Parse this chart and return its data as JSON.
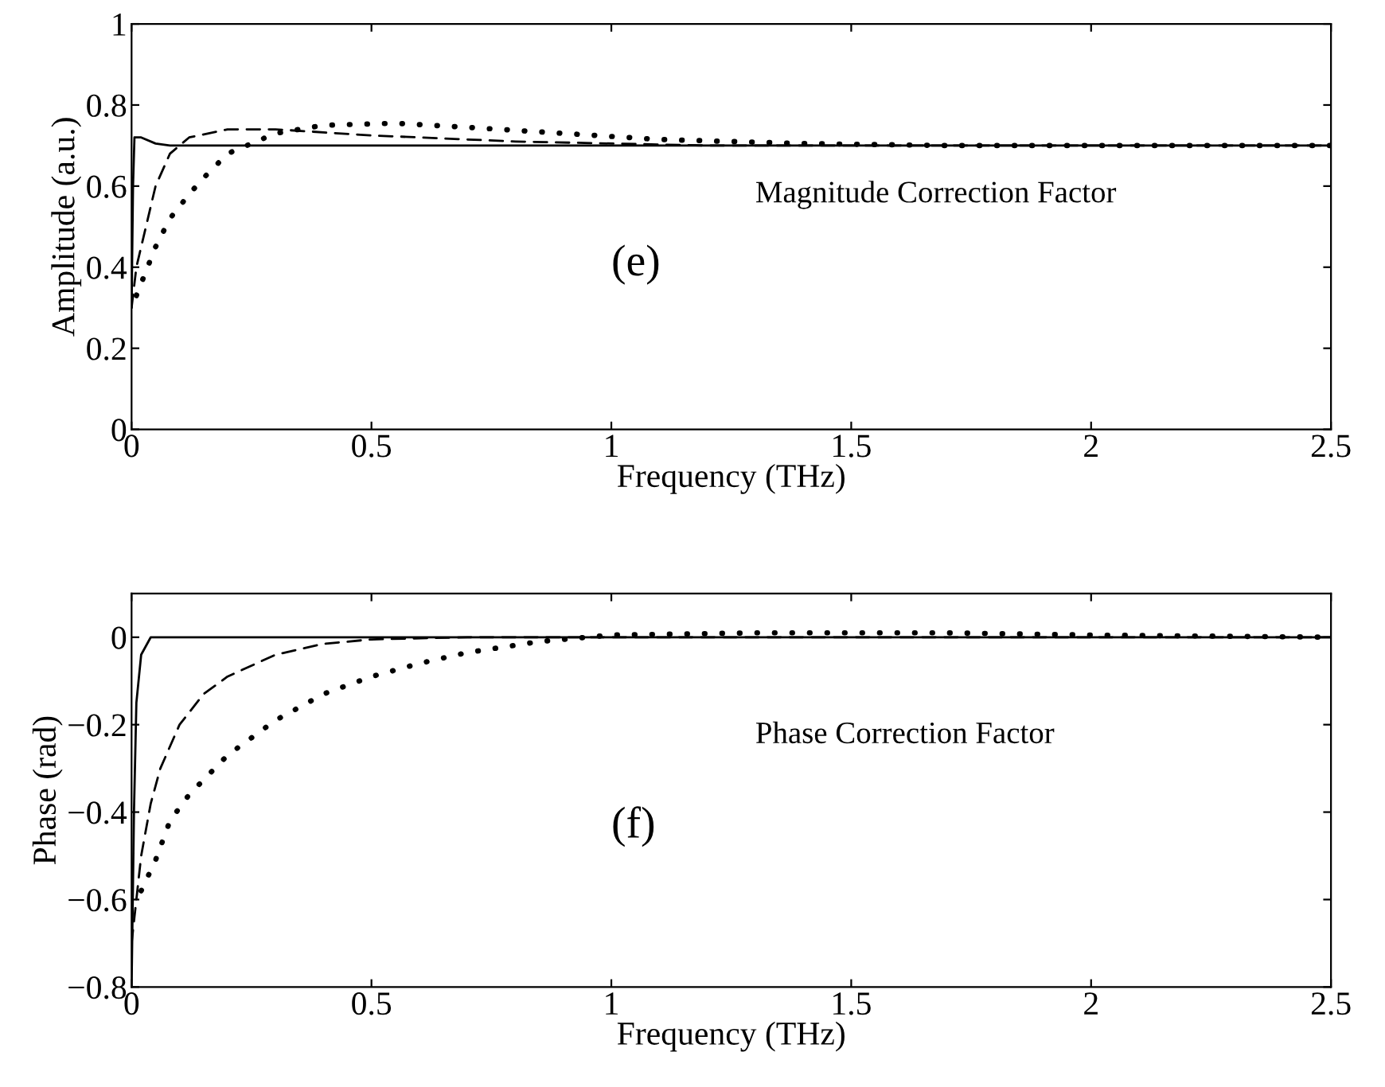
{
  "chart_data": [
    {
      "type": "line",
      "xlabel": "Frequency (THz)",
      "ylabel": "Amplitude (a.u.)",
      "xlim": [
        0,
        2.5
      ],
      "ylim": [
        0,
        1
      ],
      "xticks": [
        0,
        0.5,
        1,
        1.5,
        2,
        2.5
      ],
      "yticks": [
        0,
        0.2,
        0.4,
        0.6,
        0.8,
        1
      ],
      "grid": false,
      "legend": false,
      "annotations": [
        "Magnitude Correction Factor",
        "(e)"
      ],
      "series": [
        {
          "color": "#000000",
          "line_style": "solid",
          "x": [
            0,
            0.003,
            0.006,
            0.02,
            0.05,
            0.08,
            0.15,
            2.5
          ],
          "values": [
            0.3,
            0.6,
            0.72,
            0.72,
            0.705,
            0.7,
            0.7,
            0.7
          ]
        },
        {
          "color": "#000000",
          "line_style": "dashed",
          "x": [
            0,
            0.01,
            0.03,
            0.05,
            0.08,
            0.12,
            0.2,
            0.3,
            0.5,
            0.8,
            1.2,
            2.5
          ],
          "values": [
            0.3,
            0.4,
            0.5,
            0.6,
            0.68,
            0.72,
            0.74,
            0.74,
            0.725,
            0.71,
            0.7,
            0.7
          ]
        },
        {
          "color": "#000000",
          "line_style": "dotted",
          "x": [
            0.01,
            0.02,
            0.05,
            0.08,
            0.12,
            0.15,
            0.2,
            0.3,
            0.4,
            0.55,
            0.7,
            0.9,
            1.1,
            1.4,
            1.7,
            2.5
          ],
          "values": [
            0.33,
            0.36,
            0.45,
            0.52,
            0.58,
            0.62,
            0.68,
            0.73,
            0.75,
            0.755,
            0.745,
            0.73,
            0.715,
            0.705,
            0.7,
            0.7
          ]
        }
      ]
    },
    {
      "type": "line",
      "xlabel": "Frequency (THz)",
      "ylabel": "Phase (rad)",
      "xlim": [
        0,
        2.5
      ],
      "ylim": [
        -0.8,
        0.1
      ],
      "xticks": [
        0,
        0.5,
        1,
        1.5,
        2,
        2.5
      ],
      "yticks": [
        {
          "value": -0.8,
          "label": "−0.8"
        },
        {
          "value": -0.6,
          "label": "−0.6"
        },
        {
          "value": -0.4,
          "label": "−0.4"
        },
        {
          "value": -0.2,
          "label": "−0.2"
        },
        0
      ],
      "grid": false,
      "legend": false,
      "annotations": [
        "Phase Correction Factor",
        "(f)"
      ],
      "series": [
        {
          "color": "#000000",
          "line_style": "solid",
          "x": [
            0,
            0.005,
            0.01,
            0.02,
            0.04,
            2.5
          ],
          "values": [
            -0.8,
            -0.4,
            -0.15,
            -0.04,
            0,
            0
          ]
        },
        {
          "color": "#000000",
          "line_style": "dashed",
          "x": [
            0,
            0.02,
            0.04,
            0.06,
            0.1,
            0.15,
            0.2,
            0.3,
            0.4,
            0.5,
            0.7,
            2.5
          ],
          "values": [
            -0.7,
            -0.5,
            -0.38,
            -0.3,
            -0.2,
            -0.13,
            -0.09,
            -0.04,
            -0.015,
            -0.005,
            0,
            0
          ]
        },
        {
          "color": "#000000",
          "line_style": "dotted",
          "x": [
            0.02,
            0.05,
            0.08,
            0.12,
            0.2,
            0.3,
            0.4,
            0.5,
            0.6,
            0.7,
            0.85,
            1.0,
            1.3,
            1.7,
            2.0,
            2.5
          ],
          "values": [
            -0.58,
            -0.51,
            -0.42,
            -0.36,
            -0.27,
            -0.19,
            -0.13,
            -0.09,
            -0.06,
            -0.035,
            -0.01,
            0.005,
            0.01,
            0.01,
            0.005,
            0
          ]
        }
      ]
    }
  ]
}
